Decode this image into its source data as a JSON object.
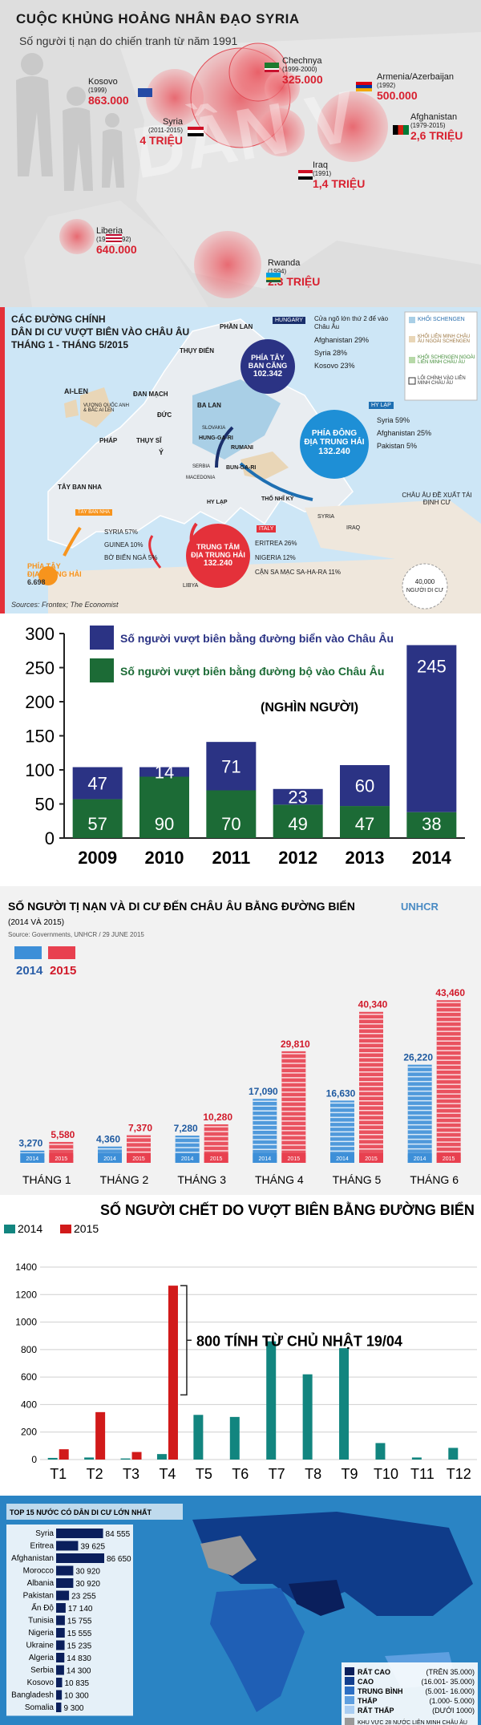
{
  "p1": {
    "title": "CUỘC KHỦNG HOẢNG NHÂN ĐẠO SYRIA",
    "subtitle": "Số người tị nạn do chiến tranh từ năm 1991",
    "items": [
      {
        "name": "Kosovo",
        "years": "(1999)",
        "value": "863.000"
      },
      {
        "name": "Chechnya",
        "years": "(1999-2000)",
        "value": "325.000"
      },
      {
        "name": "Armenia/Azerbaijan",
        "years": "(1992)",
        "value": "500.000"
      },
      {
        "name": "Syria",
        "years": "(2011-2015)",
        "value": "4 TRIỆU"
      },
      {
        "name": "Afghanistan",
        "years": "(1979-2015)",
        "value": "2,6 TRIỆU"
      },
      {
        "name": "Iraq",
        "years": "(1991)",
        "value": "1,4 TRIỆU"
      },
      {
        "name": "Liberia",
        "years": "(1991-1992)",
        "value": "640.000"
      },
      {
        "name": "Rwanda",
        "years": "(1994)",
        "value": "2.3 TRIỆU"
      }
    ]
  },
  "p2": {
    "title_lines": [
      "CÁC ĐƯỜNG CHÍNH",
      "DÂN DI CƯ VƯỢT BIÊN VÀO CHÂU ÂU",
      "THÁNG 1 - THÁNG 5/2015"
    ],
    "legend": [
      "KHỐI SCHENGEN",
      "KHỐI LIÊN MINH CHÂU ÂU NGOÀI SCHENGEN",
      "KHỐI SCHENGEN NGOÀI LIÊN MINH CHÂU ÂU",
      "LỐI CHÍNH VÀO LIÊN MINH CHÂU ÂU"
    ],
    "countries": [
      "PHẦN LAN",
      "THỤY ĐIỂN",
      "AI-LEN",
      "VƯƠNG QUỐC ANH & BẮC AI LEN",
      "ĐAN MẠCH",
      "ĐỨC",
      "BA LAN",
      "PHÁP",
      "THỤY SĨ",
      "Ý",
      "SLOVAKIA",
      "HUNG-GA-RI",
      "RUMANI",
      "SERBIA",
      "MACEDONIA",
      "BUN-GA-RI",
      "HY LẠP",
      "THỔ NHĨ KỲ",
      "TÂY BAN NHA",
      "LIBYA",
      "SYRIA",
      "IRAQ"
    ],
    "hungary": {
      "tag": "HUNGARY",
      "note": "Cửa ngõ lớn thứ 2 để vào Châu Âu",
      "rows": [
        "Afghanistan 29%",
        "Syria 28%",
        "Kosovo 23%"
      ]
    },
    "west_balkan": {
      "label1": "PHÍA TÂY",
      "label2": "BAN CĂNG",
      "value": "102.342"
    },
    "greece": {
      "tag": "HY LẠP",
      "rows": [
        "Syria 59%",
        "Afghanistan 25%",
        "Pakistan 5%"
      ]
    },
    "east_med": {
      "label1": "PHÍA ĐÔNG",
      "label2": "ĐỊA TRUNG HẢI",
      "value": "132.240"
    },
    "italy": {
      "tag": "ITALY",
      "rows": [
        "ERITREA 26%",
        "NIGERIA 12%",
        "CẬN SA MẠC SA-HA-RA 11%"
      ]
    },
    "central_med": {
      "label1": "TRUNG TÂM",
      "label2": "ĐỊA TRUNG HẢI",
      "value": "132.240"
    },
    "spain": {
      "tag": "TÂY BAN NHA",
      "rows": [
        "SYRIA 57%",
        "GUINEA 10%",
        "BỜ BIỂN NGÀ 5%"
      ]
    },
    "west_med": {
      "label1": "PHÍA TÂY",
      "label2": "ĐỊA TRUNG HẢI",
      "value": "6.698"
    },
    "proposal": "CHÂU ÂU ĐỀ XUẤT TÁI ĐỊNH CƯ",
    "resettle": {
      "value": "40,000",
      "label": "NGƯỜI DI CƯ"
    },
    "source": "Sources: Frontex; The Economist"
  },
  "chart_data": [
    {
      "type": "bar",
      "stacked": true,
      "categories": [
        "2009",
        "2010",
        "2011",
        "2012",
        "2013",
        "2014"
      ],
      "series": [
        {
          "name": "Số người vượt biên bằng đường biển vào Châu Âu",
          "values": [
            47,
            14,
            71,
            23,
            60,
            245
          ],
          "color": "#2b3384"
        },
        {
          "name": "Số người vượt biên bằng đường bộ vào Châu Âu",
          "values": [
            57,
            90,
            70,
            49,
            47,
            38
          ],
          "color": "#1c6b36"
        }
      ],
      "annotation": "(NGHÌN NGƯỜI)",
      "ylim": [
        0,
        300
      ],
      "yticks": [
        0,
        50,
        100,
        150,
        200,
        250,
        300
      ],
      "grid": false
    },
    {
      "type": "bar",
      "title": "SỐ NGƯỜI TỊ NẠN VÀ DI CƯ ĐẾN CHÂU ÂU BẰNG ĐƯỜNG BIỂN",
      "subtitle": "(2014 VÀ 2015)",
      "source": "Source: Governments, UNHCR / 29 JUNE 2015",
      "categories": [
        "THÁNG 1",
        "THÁNG 2",
        "THÁNG 3",
        "THÁNG 4",
        "THÁNG 5",
        "THÁNG 6"
      ],
      "series": [
        {
          "name": "2014",
          "values": [
            3270,
            4360,
            7280,
            17090,
            16630,
            26220
          ],
          "labels": [
            "3,270",
            "4,360",
            "7,280",
            "17,090",
            "16,630",
            "26,220"
          ],
          "color": "#3d8fd8"
        },
        {
          "name": "2015",
          "values": [
            5580,
            7370,
            10280,
            29810,
            40340,
            43460
          ],
          "labels": [
            "5,580",
            "7,370",
            "10,280",
            "29,810",
            "40,340",
            "43,460"
          ],
          "color": "#e8404f"
        }
      ],
      "ylim": [
        0,
        45000
      ]
    },
    {
      "type": "bar",
      "title": "SỐ NGƯỜI CHẾT DO VƯỢT BIÊN BẰNG  ĐƯỜNG BIỂN",
      "categories": [
        "T1",
        "T2",
        "T3",
        "T4",
        "T5",
        "T6",
        "T7",
        "T8",
        "T9",
        "T10",
        "T11",
        "T12"
      ],
      "series": [
        {
          "name": "2014",
          "values": [
            12,
            15,
            8,
            40,
            325,
            310,
            860,
            620,
            810,
            120,
            15,
            85
          ],
          "color": "#12857f"
        },
        {
          "name": "2015",
          "values": [
            75,
            345,
            55,
            1265,
            null,
            null,
            null,
            null,
            null,
            null,
            null,
            null
          ],
          "color": "#d11a1a"
        }
      ],
      "annotation": "800 TÍNH TỪ CHỦ NHẬT 19/04",
      "ylim": [
        0,
        1400
      ],
      "yticks": [
        0,
        200,
        400,
        600,
        800,
        1000,
        1200,
        1400
      ],
      "grid": true
    },
    {
      "type": "bar",
      "orientation": "horizontal",
      "title": "TOP 15 NƯỚC CÓ DÂN DI CƯ LỚN NHẤT",
      "categories": [
        "Syria",
        "Eritrea",
        "Afghanistan",
        "Morocco",
        "Albania",
        "Pakistan",
        "Ấn Độ",
        "Tunisia",
        "Nigeria",
        "Ukraine",
        "Algeria",
        "Serbia",
        "Kosovo",
        "Bangladesh",
        "Somalia"
      ],
      "values": [
        84555,
        39625,
        86650,
        30920,
        30920,
        23255,
        17140,
        15755,
        15555,
        15235,
        14830,
        14300,
        10835,
        10300,
        9300
      ],
      "labels": [
        "84 555",
        "39 625",
        "86 650",
        "30 920",
        "30 920",
        "23 255",
        "17 140",
        "15 755",
        "15 555",
        "15 235",
        "14 830",
        "14 300",
        "10 835",
        "10 300",
        "9 300"
      ],
      "legend": [
        {
          "name": "RẤT CAO",
          "range": "(TRÊN 35.000)",
          "color": "#0a1f5c"
        },
        {
          "name": "CAO",
          "range": "(16.001- 35.000)",
          "color": "#123f8f"
        },
        {
          "name": "TRUNG BÌNH",
          "range": "(5.001- 16.000)",
          "color": "#2c6fc4"
        },
        {
          "name": "THẤP",
          "range": "(1.000- 5.000)",
          "color": "#5e9fe0"
        },
        {
          "name": "RẤT THẤP",
          "range": "(DƯỚI 1000)",
          "color": "#a9cdf2"
        }
      ],
      "eu_note": "KHU VỰC 28 NƯỚC LIÊN MINH CHÂU ÂU",
      "eu_color": "#999999"
    }
  ]
}
